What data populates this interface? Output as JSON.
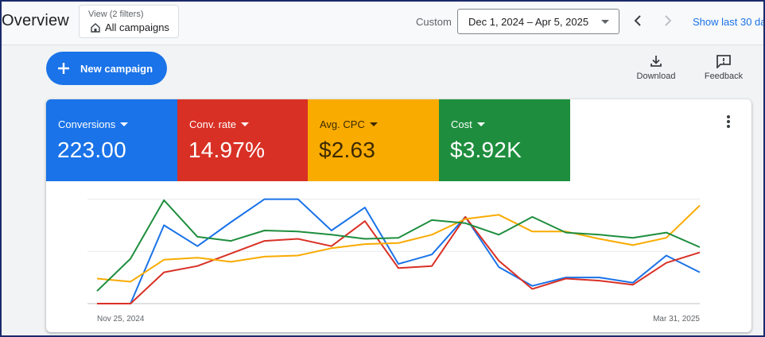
{
  "header": {
    "page_title": "Overview",
    "view_filters_label": "View (2 filters)",
    "view_value": "All campaigns",
    "custom_label": "Custom",
    "date_range": "Dec 1, 2024 – Apr 5, 2025",
    "show_last_link": "Show last 30 da"
  },
  "actions": {
    "new_campaign": "New campaign",
    "download": "Download",
    "feedback": "Feedback"
  },
  "metrics": [
    {
      "label": "Conversions",
      "value": "223.00",
      "color": "#1a73e8"
    },
    {
      "label": "Conv. rate",
      "value": "14.97%",
      "color": "#d93025"
    },
    {
      "label": "Avg. CPC",
      "value": "$2.63",
      "color": "#f9ab00"
    },
    {
      "label": "Cost",
      "value": "$3.92K",
      "color": "#1e8e3e"
    }
  ],
  "chart_data": {
    "type": "line",
    "x_labels": [
      "Nov 25, 2024",
      "Mar 31, 2025"
    ],
    "grid": true,
    "ylim": [
      0,
      1.05
    ],
    "points": 19,
    "series": [
      {
        "color": "#1a73e8",
        "values": [
          0.0,
          0.0,
          0.75,
          0.55,
          0.78,
          1.0,
          1.0,
          0.7,
          0.92,
          0.38,
          0.47,
          0.83,
          0.35,
          0.17,
          0.25,
          0.25,
          0.2,
          0.46,
          0.3
        ]
      },
      {
        "color": "#d93025",
        "values": [
          0.0,
          0.0,
          0.3,
          0.36,
          0.48,
          0.6,
          0.62,
          0.55,
          0.79,
          0.34,
          0.36,
          0.83,
          0.41,
          0.14,
          0.24,
          0.22,
          0.18,
          0.39,
          0.49
        ]
      },
      {
        "color": "#f9ab00",
        "values": [
          0.24,
          0.21,
          0.42,
          0.44,
          0.4,
          0.45,
          0.46,
          0.53,
          0.57,
          0.58,
          0.66,
          0.81,
          0.85,
          0.69,
          0.69,
          0.62,
          0.56,
          0.63,
          0.94
        ]
      },
      {
        "color": "#1e8e3e",
        "values": [
          0.12,
          0.43,
          0.99,
          0.64,
          0.6,
          0.7,
          0.69,
          0.66,
          0.62,
          0.63,
          0.8,
          0.77,
          0.66,
          0.83,
          0.68,
          0.66,
          0.63,
          0.68,
          0.54
        ]
      }
    ]
  }
}
